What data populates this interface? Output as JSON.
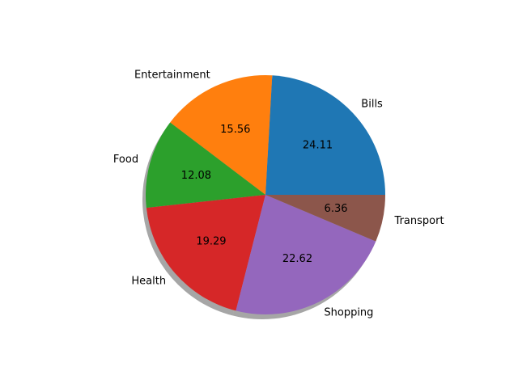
{
  "chart_data": {
    "type": "pie",
    "title": "",
    "shadow": true,
    "slices": [
      {
        "label": "Bills",
        "value": 24.11,
        "color": "#1f77b4"
      },
      {
        "label": "Entertainment",
        "value": 15.56,
        "color": "#ff7f0e"
      },
      {
        "label": "Food",
        "value": 12.08,
        "color": "#2ca02c"
      },
      {
        "label": "Health",
        "value": 19.29,
        "color": "#d62728"
      },
      {
        "label": "Shopping",
        "value": 22.62,
        "color": "#9467bd"
      },
      {
        "label": "Transport",
        "value": 6.36,
        "color": "#8c564b"
      }
    ]
  }
}
